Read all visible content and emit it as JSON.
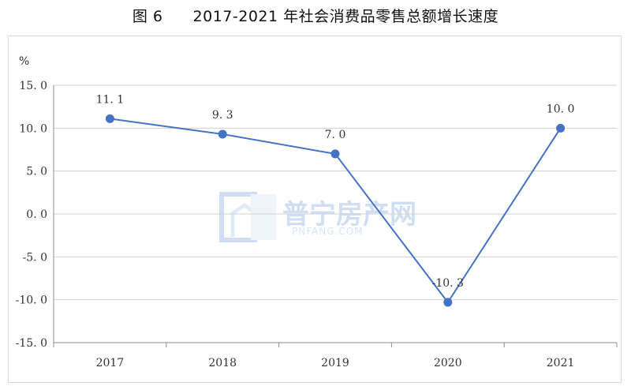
{
  "figure": {
    "number": "图 6",
    "title": "2017-2021 年社会消费品零售总额增长速度"
  },
  "watermark": {
    "text": "普宁房产网",
    "sub": "PNFANG.COM",
    "icon": "house-logo-icon"
  },
  "chart_data": {
    "type": "line",
    "title": "2017-2021 年社会消费品零售总额增长速度",
    "xlabel": "",
    "ylabel": "%",
    "categories": [
      "2017",
      "2018",
      "2019",
      "2020",
      "2021"
    ],
    "series": [
      {
        "values": [
          11.1,
          9.3,
          7.0,
          -10.3,
          10.0
        ],
        "labels": [
          "11. 1",
          "9. 3",
          "7. 0",
          "-10. 3",
          "10. 0"
        ],
        "color": "#4472c4"
      }
    ],
    "ylim": [
      -15,
      15
    ],
    "yticks": [
      15,
      10,
      5,
      0,
      -5,
      -10,
      -15
    ],
    "ytick_labels": [
      "15. 0",
      "10. 0",
      "5. 0",
      "0. 0",
      "-5. 0",
      "-10. 0",
      "-15. 0"
    ],
    "grid": true,
    "legend": "none"
  }
}
